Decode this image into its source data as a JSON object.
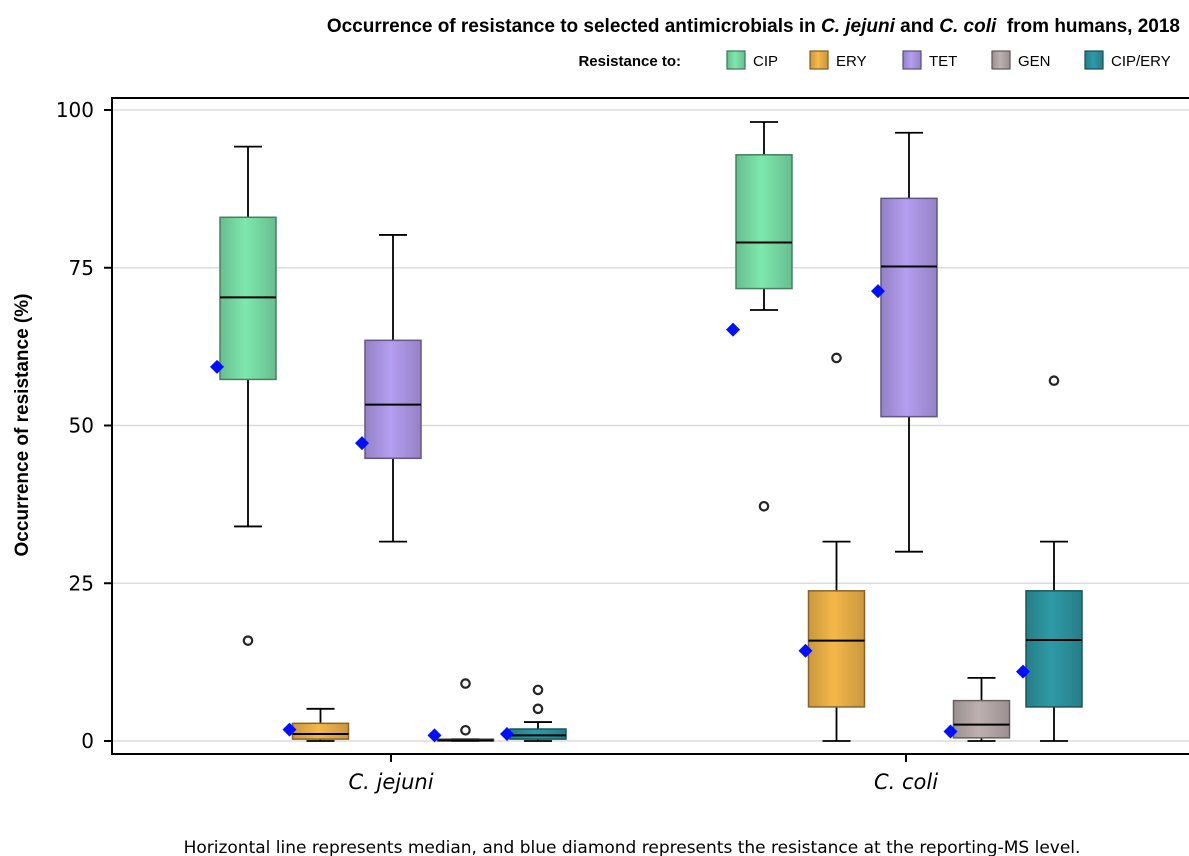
{
  "chart_data": {
    "type": "box",
    "title": {
      "part1": "Occurrence of resistance to selected antimicrobials in ",
      "part2": "C. jejuni",
      "part3": " and ",
      "part4": "C. coli",
      "part5": "  from humans, 2018"
    },
    "legend_title": "Resistance to:",
    "ylabel": "Occurrence of resistance (%)",
    "ylim": [
      0,
      100
    ],
    "yticks": [
      0,
      25,
      50,
      75,
      100
    ],
    "grid": true,
    "legend_position": "top-right",
    "footnote": "Horizontal line represents median, and blue diamond represents the resistance at the reporting-MS level.",
    "categories": [
      "C. jejuni",
      "C. coli"
    ],
    "series": [
      {
        "name": "CIP",
        "color": "#7ee8ad",
        "boxes": [
          {
            "min": 34,
            "q1": 57.3,
            "median": 70.3,
            "q3": 83,
            "max": 94.2,
            "mean": 59.3,
            "outliers": [
              15.9
            ]
          },
          {
            "min": 68.3,
            "q1": 71.7,
            "median": 79,
            "q3": 92.9,
            "max": 98.1,
            "mean": 65.2,
            "outliers": [
              37.2
            ]
          }
        ]
      },
      {
        "name": "ERY",
        "color": "#f5b84a",
        "boxes": [
          {
            "min": 0,
            "q1": 0.3,
            "median": 1.1,
            "q3": 2.8,
            "max": 5.1,
            "mean": 1.8,
            "outliers": []
          },
          {
            "min": 0,
            "q1": 5.4,
            "median": 15.9,
            "q3": 23.8,
            "max": 31.6,
            "mean": 14.3,
            "outliers": [
              60.7
            ]
          }
        ]
      },
      {
        "name": "TET",
        "color": "#b49ef0",
        "boxes": [
          {
            "min": 31.6,
            "q1": 44.8,
            "median": 53.3,
            "q3": 63.5,
            "max": 80.2,
            "mean": 47.2,
            "outliers": []
          },
          {
            "min": 30,
            "q1": 51.4,
            "median": 75.2,
            "q3": 86,
            "max": 96.4,
            "mean": 71.3,
            "outliers": []
          }
        ]
      },
      {
        "name": "GEN",
        "color": "#bdb0b0",
        "boxes": [
          {
            "min": 0,
            "q1": 0,
            "median": 0.1,
            "q3": 0.3,
            "max": 0.3,
            "mean": 0.9,
            "outliers": [
              1.7,
              9.1
            ]
          },
          {
            "min": 0,
            "q1": 0.5,
            "median": 2.6,
            "q3": 6.4,
            "max": 10,
            "mean": 1.5,
            "outliers": []
          }
        ]
      },
      {
        "name": "CIP/ERY",
        "color": "#2e9aa6",
        "boxes": [
          {
            "min": 0,
            "q1": 0.3,
            "median": 0.9,
            "q3": 1.9,
            "max": 3,
            "mean": 1.1,
            "outliers": [
              5.1,
              8.1
            ]
          },
          {
            "min": 0,
            "q1": 5.4,
            "median": 16,
            "q3": 23.8,
            "max": 31.6,
            "mean": 11,
            "outliers": [
              57.1
            ]
          }
        ]
      }
    ]
  }
}
